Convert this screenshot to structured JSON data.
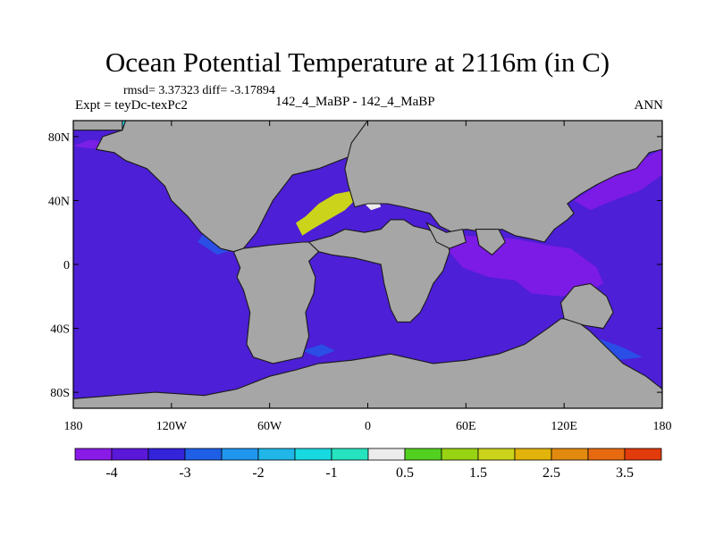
{
  "title": "Ocean Potential Temperature at 2116m (in C)",
  "stats_line": "rmsd= 3.37323  diff= -3.17894",
  "experiment_label": "Expt = teyDc-texPc2",
  "case_label": "142_4_MaBP - 142_4_MaBP",
  "season_label": "ANN",
  "axes": {
    "lon_range": [
      -180,
      180
    ],
    "lat_range": [
      -90,
      90
    ],
    "x_ticks": [
      {
        "value": -180,
        "label": "180"
      },
      {
        "value": -120,
        "label": "120W"
      },
      {
        "value": -60,
        "label": "60W"
      },
      {
        "value": 0,
        "label": "0"
      },
      {
        "value": 60,
        "label": "60E"
      },
      {
        "value": 120,
        "label": "120E"
      },
      {
        "value": 180,
        "label": "180"
      }
    ],
    "y_ticks": [
      {
        "value": 80,
        "label": "80N"
      },
      {
        "value": 40,
        "label": "40N"
      },
      {
        "value": 0,
        "label": "0"
      },
      {
        "value": -40,
        "label": "40S"
      },
      {
        "value": -80,
        "label": "80S"
      }
    ]
  },
  "colors": {
    "land": "#a6a6a6",
    "ocean_base": "#4d1fd6",
    "coast": "#1a1a1a"
  },
  "colorbar": {
    "colors": [
      "#8a1ae6",
      "#5a18d8",
      "#3323d9",
      "#1f5fe6",
      "#2196ee",
      "#20b6e8",
      "#19d9e0",
      "#25e3bf",
      "#ececec",
      "#52d020",
      "#98d313",
      "#cbd31a",
      "#e2b30a",
      "#e28a10",
      "#e86a10",
      "#e23b0c"
    ],
    "labels": [
      {
        "index": 1,
        "text": "-4"
      },
      {
        "index": 3,
        "text": "-3"
      },
      {
        "index": 5,
        "text": "-2"
      },
      {
        "index": 7,
        "text": "-1"
      },
      {
        "index": 9,
        "text": "0.5"
      },
      {
        "index": 11,
        "text": "1.5"
      },
      {
        "index": 13,
        "text": "2.5"
      },
      {
        "index": 15,
        "text": "3.5"
      }
    ]
  },
  "land_masses": [
    {
      "name": "north-america-land",
      "points": [
        [
          -180,
          90
        ],
        [
          -148,
          90
        ],
        [
          -150,
          84
        ],
        [
          -162,
          80
        ],
        [
          -166,
          72
        ],
        [
          -155,
          70
        ],
        [
          -148,
          65
        ],
        [
          -135,
          60
        ],
        [
          -124,
          49
        ],
        [
          -120,
          40
        ],
        [
          -110,
          30
        ],
        [
          -102,
          20
        ],
        [
          -96,
          15
        ],
        [
          -90,
          10
        ],
        [
          -82,
          8
        ],
        [
          -76,
          10
        ],
        [
          -68,
          20
        ],
        [
          -58,
          40
        ],
        [
          -46,
          56
        ],
        [
          -30,
          60
        ],
        [
          -10,
          68
        ],
        [
          20,
          75
        ],
        [
          45,
          82
        ],
        [
          90,
          90
        ]
      ]
    },
    {
      "name": "north-america-land-2",
      "points": [
        [
          -150,
          90
        ],
        [
          -150,
          84
        ],
        [
          -180,
          84
        ],
        [
          -180,
          90
        ]
      ]
    },
    {
      "name": "south-america-land",
      "points": [
        [
          -82,
          8
        ],
        [
          -78,
          -2
        ],
        [
          -80,
          -8
        ],
        [
          -76,
          -16
        ],
        [
          -72,
          -30
        ],
        [
          -74,
          -50
        ],
        [
          -70,
          -58
        ],
        [
          -58,
          -62
        ],
        [
          -40,
          -58
        ],
        [
          -36,
          -45
        ],
        [
          -38,
          -30
        ],
        [
          -33,
          -18
        ],
        [
          -32,
          -8
        ],
        [
          -36,
          2
        ],
        [
          -30,
          8
        ],
        [
          -30,
          14
        ],
        [
          -40,
          14
        ],
        [
          -60,
          12
        ],
        [
          -76,
          10
        ]
      ]
    },
    {
      "name": "africa-land",
      "points": [
        [
          -36,
          14
        ],
        [
          -22,
          18
        ],
        [
          -14,
          22
        ],
        [
          -2,
          20
        ],
        [
          8,
          22
        ],
        [
          14,
          28
        ],
        [
          22,
          28
        ],
        [
          28,
          24
        ],
        [
          36,
          22
        ],
        [
          48,
          18
        ],
        [
          50,
          8
        ],
        [
          46,
          -4
        ],
        [
          40,
          -12
        ],
        [
          36,
          -22
        ],
        [
          32,
          -30
        ],
        [
          26,
          -36
        ],
        [
          18,
          -36
        ],
        [
          14,
          -28
        ],
        [
          10,
          -12
        ],
        [
          8,
          0
        ],
        [
          -8,
          4
        ],
        [
          -22,
          6
        ],
        [
          -30,
          8
        ]
      ]
    },
    {
      "name": "eurasia-land",
      "points": [
        [
          -8,
          36
        ],
        [
          0,
          38
        ],
        [
          12,
          38
        ],
        [
          22,
          36
        ],
        [
          30,
          34
        ],
        [
          38,
          32
        ],
        [
          44,
          24
        ],
        [
          52,
          20
        ],
        [
          60,
          22
        ],
        [
          72,
          20
        ],
        [
          82,
          22
        ],
        [
          90,
          18
        ],
        [
          100,
          16
        ],
        [
          108,
          14
        ],
        [
          114,
          22
        ],
        [
          122,
          28
        ],
        [
          126,
          32
        ],
        [
          122,
          38
        ],
        [
          130,
          44
        ],
        [
          140,
          50
        ],
        [
          152,
          56
        ],
        [
          164,
          60
        ],
        [
          172,
          70
        ],
        [
          180,
          72
        ],
        [
          180,
          90
        ],
        [
          0,
          90
        ],
        [
          -10,
          76
        ],
        [
          -14,
          60
        ],
        [
          -12,
          50
        ]
      ]
    },
    {
      "name": "arabia-land",
      "points": [
        [
          36,
          26
        ],
        [
          48,
          20
        ],
        [
          58,
          22
        ],
        [
          60,
          14
        ],
        [
          50,
          10
        ],
        [
          42,
          14
        ]
      ]
    },
    {
      "name": "india-land",
      "points": [
        [
          66,
          22
        ],
        [
          80,
          22
        ],
        [
          84,
          14
        ],
        [
          76,
          6
        ],
        [
          68,
          12
        ]
      ]
    },
    {
      "name": "australia-antarctica-land",
      "points": [
        [
          -180,
          -84
        ],
        [
          -130,
          -80
        ],
        [
          -100,
          -82
        ],
        [
          -80,
          -78
        ],
        [
          -60,
          -70
        ],
        [
          -44,
          -66
        ],
        [
          -30,
          -62
        ],
        [
          -10,
          -60
        ],
        [
          14,
          -56
        ],
        [
          40,
          -62
        ],
        [
          60,
          -60
        ],
        [
          80,
          -56
        ],
        [
          96,
          -50
        ],
        [
          110,
          -40
        ],
        [
          118,
          -34
        ],
        [
          126,
          -34
        ],
        [
          136,
          -42
        ],
        [
          146,
          -52
        ],
        [
          156,
          -62
        ],
        [
          170,
          -70
        ],
        [
          180,
          -78
        ],
        [
          180,
          -90
        ],
        [
          -180,
          -90
        ]
      ]
    },
    {
      "name": "australia-land",
      "points": [
        [
          118,
          -24
        ],
        [
          126,
          -14
        ],
        [
          136,
          -12
        ],
        [
          146,
          -20
        ],
        [
          150,
          -30
        ],
        [
          144,
          -40
        ],
        [
          132,
          -38
        ],
        [
          120,
          -34
        ]
      ]
    }
  ],
  "ocean_patches": [
    {
      "name": "arctic-cyan-west",
      "color": "#22d2de",
      "points": [
        [
          -150,
          90
        ],
        [
          -95,
          90
        ],
        [
          -98,
          82
        ],
        [
          -120,
          78
        ],
        [
          -140,
          80
        ],
        [
          -150,
          86
        ]
      ]
    },
    {
      "name": "arctic-cyan-east",
      "color": "#22d2de",
      "points": [
        [
          20,
          90
        ],
        [
          60,
          90
        ],
        [
          64,
          84
        ],
        [
          40,
          84
        ],
        [
          22,
          86
        ]
      ]
    },
    {
      "name": "arctic-teal",
      "color": "#25b5e0",
      "points": [
        [
          -178,
          90
        ],
        [
          -150,
          90
        ],
        [
          -152,
          84
        ],
        [
          -178,
          84
        ]
      ]
    },
    {
      "name": "pacific-purple-north",
      "color": "#7a1fe6",
      "points": [
        [
          -180,
          74
        ],
        [
          -150,
          70
        ],
        [
          -140,
          74
        ],
        [
          -170,
          78
        ]
      ]
    },
    {
      "name": "mediterranean-yellow",
      "color": "#cbd31a",
      "points": [
        [
          -44,
          26
        ],
        [
          -38,
          30
        ],
        [
          -30,
          38
        ],
        [
          -20,
          44
        ],
        [
          -10,
          46
        ],
        [
          -6,
          42
        ],
        [
          -14,
          34
        ],
        [
          -24,
          28
        ],
        [
          -34,
          22
        ],
        [
          -40,
          18
        ]
      ]
    },
    {
      "name": "mediterranean-white",
      "color": "#ececec",
      "points": [
        [
          -2,
          42
        ],
        [
          6,
          42
        ],
        [
          8,
          36
        ],
        [
          2,
          34
        ],
        [
          -2,
          38
        ]
      ]
    },
    {
      "name": "indian-purple",
      "color": "#7c1ae6",
      "points": [
        [
          40,
          20
        ],
        [
          60,
          18
        ],
        [
          90,
          16
        ],
        [
          110,
          12
        ],
        [
          124,
          10
        ],
        [
          132,
          4
        ],
        [
          140,
          -2
        ],
        [
          144,
          -12
        ],
        [
          132,
          -18
        ],
        [
          118,
          -20
        ],
        [
          100,
          -18
        ],
        [
          90,
          -10
        ],
        [
          74,
          -8
        ],
        [
          58,
          -2
        ],
        [
          48,
          10
        ]
      ]
    },
    {
      "name": "pacific-east-purple",
      "color": "#7c1ae6",
      "points": [
        [
          126,
          40
        ],
        [
          150,
          56
        ],
        [
          164,
          64
        ],
        [
          176,
          70
        ],
        [
          180,
          72
        ],
        [
          180,
          56
        ],
        [
          166,
          46
        ],
        [
          150,
          40
        ],
        [
          136,
          34
        ]
      ]
    },
    {
      "name": "atlantic-blue-strip",
      "color": "#2a4ee6",
      "points": [
        [
          -100,
          20
        ],
        [
          -90,
          14
        ],
        [
          -80,
          10
        ],
        [
          -92,
          6
        ],
        [
          -104,
          14
        ]
      ]
    },
    {
      "name": "southern-blue-patch",
      "color": "#2a4ee6",
      "points": [
        [
          -40,
          -54
        ],
        [
          -28,
          -50
        ],
        [
          -20,
          -54
        ],
        [
          -30,
          -58
        ]
      ]
    },
    {
      "name": "se-pacific-blue",
      "color": "#2a4ee6",
      "points": [
        [
          120,
          -44
        ],
        [
          140,
          -46
        ],
        [
          156,
          -52
        ],
        [
          168,
          -58
        ],
        [
          152,
          -60
        ],
        [
          132,
          -54
        ]
      ]
    }
  ]
}
